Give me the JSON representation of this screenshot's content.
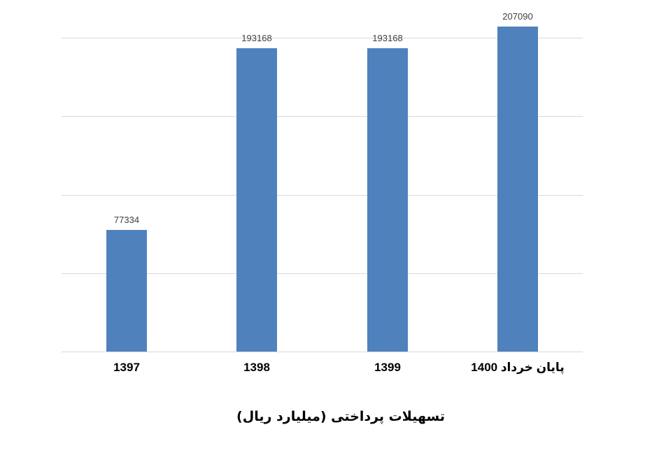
{
  "chart_data": {
    "type": "bar",
    "title": "تسهیلات پرداختی (میلیارد ریال)",
    "title_position": "bottom",
    "categories": [
      "1397",
      "1398",
      "1399",
      "پایان خرداد 1400"
    ],
    "values": [
      77334,
      193168,
      193168,
      207090
    ],
    "data_labels": [
      "77334",
      "193168",
      "193168",
      "207090"
    ],
    "xlabel": "",
    "ylabel": "",
    "ylim": [
      0,
      225000
    ],
    "major_unit": 50000,
    "y_axis_tick_labels": "none",
    "gridlines": "horizontal",
    "legend": "none",
    "direction": "rtl",
    "colors": {
      "bar": "#4F81BD",
      "gridline": "#D9D9D9",
      "value_label": "#404040",
      "category_label": "#000000",
      "title": "#000000",
      "background": "#FFFFFF"
    }
  }
}
